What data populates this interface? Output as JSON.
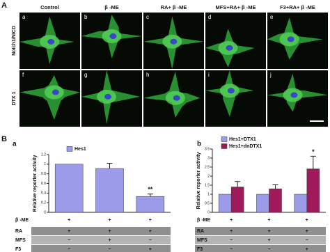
{
  "figure_label_a": "A",
  "column_headers": [
    "Control",
    "β -ME",
    "RA+ β -ME",
    "MFS+RA+ β -ME",
    "F3+RA+ β -ME"
  ],
  "row_labels": [
    "Notch1/NICD",
    "DTX 1"
  ],
  "panel_letters": [
    "a",
    "b",
    "c",
    "d",
    "e",
    "f",
    "g",
    "h",
    "i",
    "j"
  ],
  "figure_label_b": "B",
  "chart_data": [
    {
      "type": "bar",
      "panel": "a",
      "ylabel": "Relative reporter activity",
      "ylim": [
        0,
        1.2
      ],
      "yticks": [
        0,
        0.2,
        0.4,
        0.6,
        0.8,
        1.0,
        1.2
      ],
      "series": [
        {
          "name": "Hes1",
          "color": "#9b9bea",
          "values": [
            1.0,
            0.91,
            0.33
          ],
          "errors": [
            null,
            0.11,
            0.05
          ]
        }
      ],
      "significance": [
        null,
        null,
        "**"
      ],
      "conditions": [
        {
          "label": "β -ME",
          "marks": [
            "+",
            "+",
            "+"
          ]
        },
        {
          "label": "RA",
          "marks": [
            "+",
            "+",
            "+"
          ]
        },
        {
          "label": "MFS",
          "marks": [
            "−",
            "+",
            "−"
          ]
        },
        {
          "label": "F3",
          "marks": [
            "−",
            "−",
            "+"
          ]
        }
      ]
    },
    {
      "type": "grouped-bar",
      "panel": "b",
      "ylabel": "Relative reporter activity",
      "ylim": [
        0,
        3.5
      ],
      "yticks": [
        0,
        0.5,
        1.0,
        1.5,
        2.0,
        2.5,
        3.0,
        3.5
      ],
      "series": [
        {
          "name": "Hes1+DTX1",
          "color": "#9b9bea",
          "values": [
            1.0,
            1.0,
            1.0
          ],
          "errors": [
            null,
            null,
            null
          ]
        },
        {
          "name": "Hes1+dnDTX1",
          "color": "#a0195a",
          "values": [
            1.4,
            1.3,
            2.4
          ],
          "errors": [
            0.3,
            0.22,
            0.7
          ]
        }
      ],
      "significance": [
        null,
        null,
        "*"
      ],
      "conditions": [
        {
          "label": "β -ME",
          "marks": [
            "+",
            "+",
            "+"
          ]
        },
        {
          "label": "RA",
          "marks": [
            "+",
            "+",
            "+"
          ]
        },
        {
          "label": "MFS",
          "marks": [
            "−",
            "+",
            "−"
          ]
        },
        {
          "label": "F3",
          "marks": [
            "−",
            "−",
            "+"
          ]
        }
      ]
    }
  ]
}
